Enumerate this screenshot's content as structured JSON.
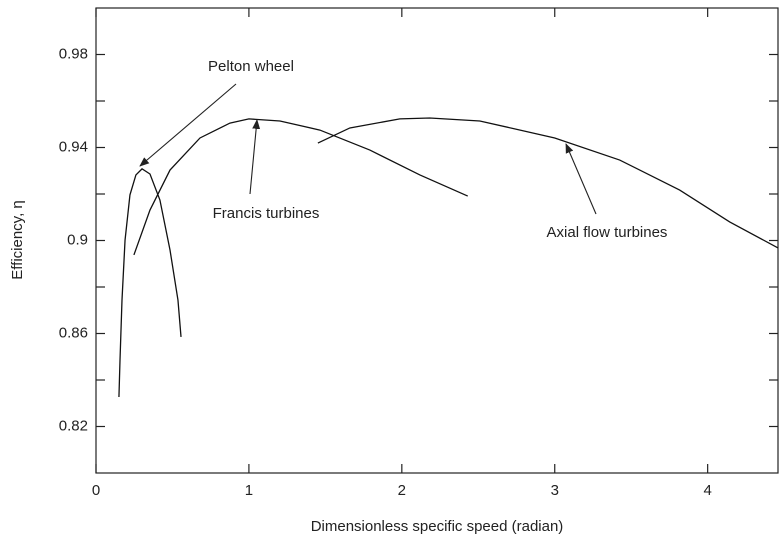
{
  "chart_data": {
    "type": "line",
    "xlabel": "Dimensionless specific speed (radian)",
    "ylabel": "Efficiency, η",
    "xlim": [
      0,
      4.46
    ],
    "ylim": [
      0.8,
      1.0
    ],
    "xticks": [
      0,
      1,
      2,
      3,
      4
    ],
    "yticks": [
      0.82,
      0.86,
      0.9,
      0.94,
      0.98
    ],
    "minor_yticks": [
      0.84,
      0.88,
      0.92,
      0.96
    ],
    "grid": false,
    "series": [
      {
        "name": "Pelton wheel",
        "color": "#111111",
        "x": [
          0.15,
          0.157,
          0.17,
          0.19,
          0.222,
          0.261,
          0.301,
          0.353,
          0.418,
          0.484,
          0.536,
          0.556
        ],
        "values": [
          0.8327,
          0.8486,
          0.8744,
          0.9002,
          0.9196,
          0.9282,
          0.9308,
          0.9286,
          0.9174,
          0.8959,
          0.8744,
          0.8585
        ]
      },
      {
        "name": "Francis turbines",
        "color": "#111111",
        "x": [
          0.248,
          0.353,
          0.484,
          0.68,
          0.876,
          1.0,
          1.203,
          1.464,
          1.791,
          2.118,
          2.431
        ],
        "values": [
          0.8938,
          0.9131,
          0.9303,
          0.9441,
          0.9505,
          0.9523,
          0.9514,
          0.9475,
          0.9389,
          0.9282,
          0.9191
        ]
      },
      {
        "name": "Axial flow turbines",
        "color": "#111111",
        "x": [
          1.451,
          1.66,
          1.987,
          2.183,
          2.51,
          3.0,
          3.425,
          3.817,
          4.144,
          4.46
        ],
        "values": [
          0.9419,
          0.9484,
          0.9523,
          0.9527,
          0.9514,
          0.9441,
          0.9346,
          0.9217,
          0.908,
          0.8968
        ]
      }
    ]
  }
}
